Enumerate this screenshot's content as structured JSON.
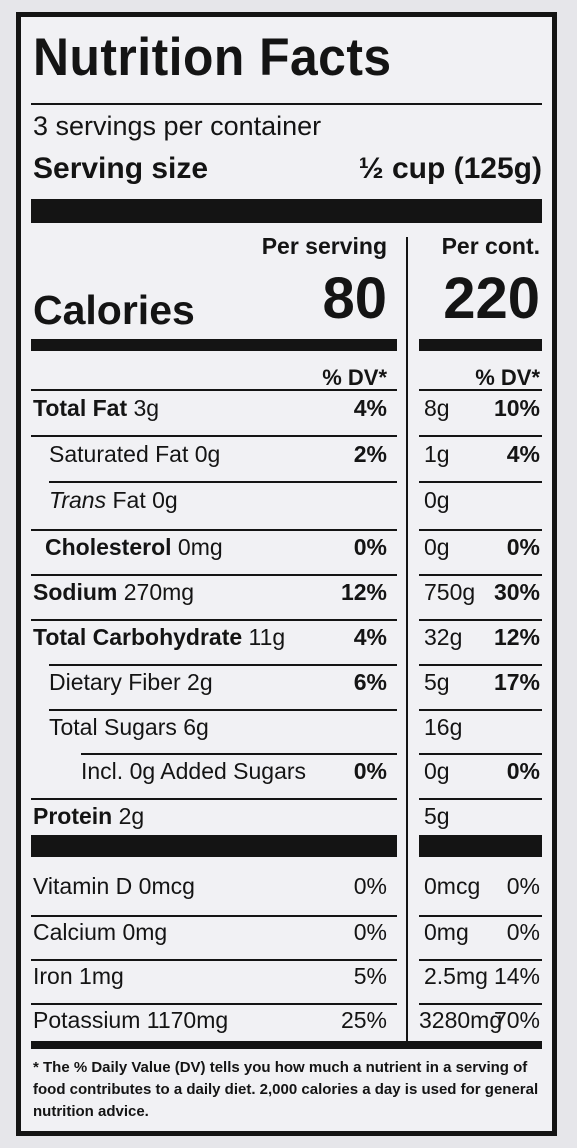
{
  "title": "Nutrition Facts",
  "servings_per_container": "3 servings per container",
  "serving_size_label": "Serving size",
  "serving_size_value": "½ cup (125g)",
  "per_serving_header": "Per serving",
  "per_container_header": "Per cont.",
  "calories_label": "Calories",
  "calories_per_serving": "80",
  "calories_per_container": "220",
  "dv_header": "% DV*",
  "rows": [
    {
      "bold": "Total Fat",
      "plain": " 3g",
      "dv": "4%",
      "amt_cont": "8g",
      "dv_cont": "10%"
    },
    {
      "bold": "",
      "plain": "Saturated Fat 0g",
      "dv": "2%",
      "amt_cont": "1g",
      "dv_cont": "4%"
    },
    {
      "italic": "Trans",
      "plain": " Fat 0g",
      "dv": "",
      "amt_cont": "0g",
      "dv_cont": ""
    },
    {
      "bold": "Cholesterol",
      "plain": " 0mg",
      "dv": "0%",
      "amt_cont": "0g",
      "dv_cont": "0%"
    },
    {
      "bold": "Sodium",
      "plain": " 270mg",
      "dv": "12%",
      "amt_cont": "750g",
      "dv_cont": "30%"
    },
    {
      "bold": "Total Carbohydrate",
      "plain": " 11g",
      "dv": "4%",
      "amt_cont": "32g",
      "dv_cont": "12%"
    },
    {
      "bold": "",
      "plain": "Dietary Fiber 2g",
      "dv": "6%",
      "amt_cont": "5g",
      "dv_cont": "17%"
    },
    {
      "bold": "",
      "plain": "Total Sugars 6g",
      "dv": "",
      "amt_cont": "16g",
      "dv_cont": ""
    },
    {
      "bold": "",
      "plain": "Incl. 0g Added Sugars",
      "dv": "0%",
      "amt_cont": "0g",
      "dv_cont": "0%"
    },
    {
      "bold": "Protein",
      "plain": " 2g",
      "dv": "",
      "amt_cont": "5g",
      "dv_cont": ""
    }
  ],
  "vitamins": [
    {
      "name": "Vitamin D 0mcg",
      "dv": "0%",
      "amt_cont": "0mcg",
      "dv_cont": "0%"
    },
    {
      "name": "Calcium 0mg",
      "dv": "0%",
      "amt_cont": "0mg",
      "dv_cont": "0%"
    },
    {
      "name": "Iron 1mg",
      "dv": "5%",
      "amt_cont": "2.5mg",
      "dv_cont": "14%"
    },
    {
      "name": "Potassium 1170mg",
      "dv": "25%",
      "amt_cont": "3280mg",
      "dv_cont": "70%"
    }
  ],
  "footnote": "* The % Daily Value (DV) tells you how much a nutrient in a serving of food contributes to a daily diet. 2,000 calories a day is used for general nutrition advice."
}
